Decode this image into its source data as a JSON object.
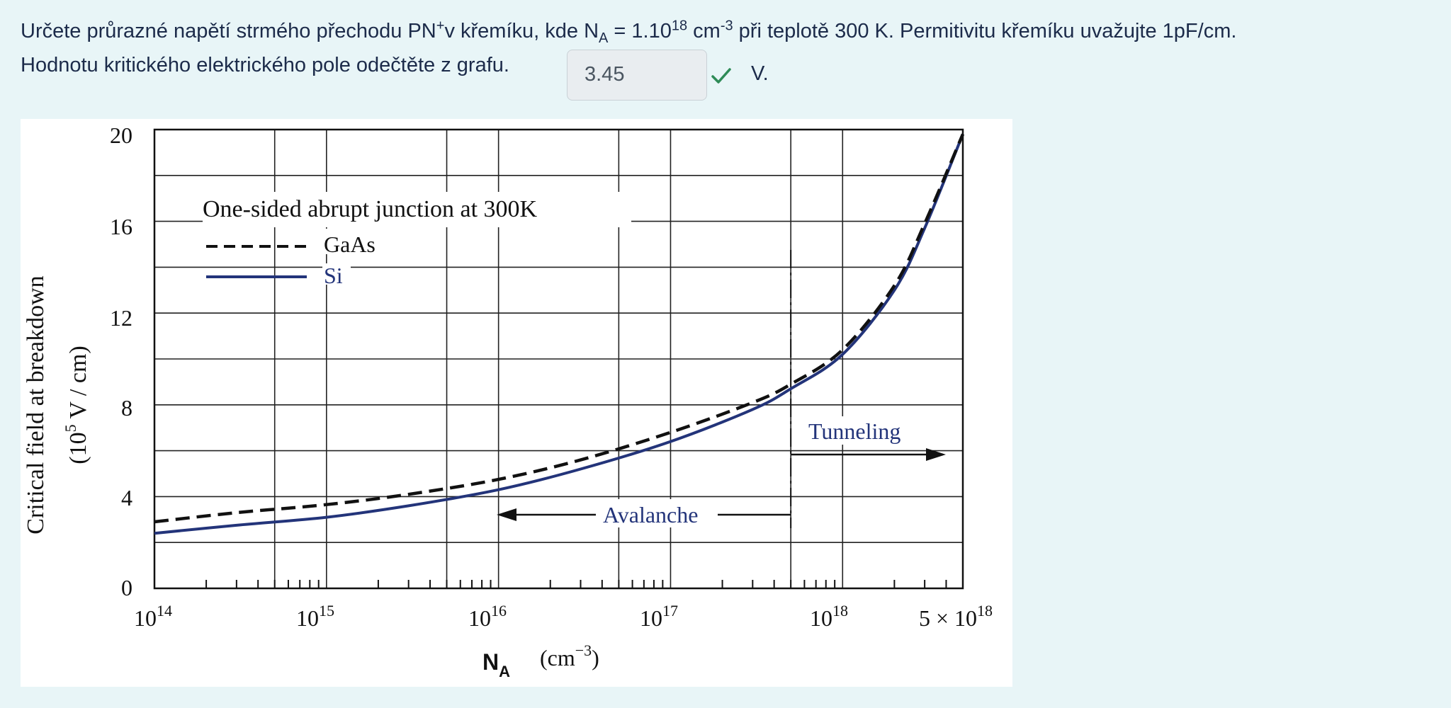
{
  "question": {
    "line1_part1": "Určete průrazné napětí strmého přechodu PN",
    "line1_sup_plus": "+",
    "line1_part2": "v křemíku, kde N",
    "line1_sub_a": "A",
    "line1_part3": " = 1.10",
    "line1_sup_18": "18",
    "line1_part4": " cm",
    "line1_sup_m3": "-3",
    "line1_part5": " při teplotě 300 K. Permitivitu křemíku uvažujte 1pF/cm.",
    "line2": "Hodnotu kritického elektrického pole odečtěte z grafu."
  },
  "answer": {
    "value": "3.45",
    "status": "correct",
    "status_color": "#2e8b57",
    "unit": "V."
  },
  "chart_data": {
    "type": "line",
    "x_scale": "log",
    "xlim": [
      100000000000000.0,
      5e+18
    ],
    "ylim": [
      0,
      20
    ],
    "y_ticks": [
      "0",
      "4",
      "8",
      "12",
      "16",
      "20"
    ],
    "x_tick_labels": {
      "base": "10",
      "exps": [
        "14",
        "15",
        "16",
        "17",
        "18"
      ],
      "last_prefix": "5 × 10",
      "last_exp": "18"
    },
    "ylabel_line1": "Critical field at breakdown",
    "ylabel_line2_a": "(10",
    "ylabel_line2_sup": "5",
    "ylabel_line2_b": " V / cm)",
    "xlabel_main": "N",
    "xlabel_sub": "A",
    "xlabel_unit_a": "(cm",
    "xlabel_unit_sup": "−3",
    "xlabel_unit_b": ")",
    "legend_title": "One-sided abrupt junction at 300K",
    "annotations": {
      "avalanche": "Avalanche",
      "tunneling": "Tunneling",
      "boundary_x": 5e+17
    },
    "series": [
      {
        "name": "GaAs",
        "style": "dashed",
        "color": "#111111",
        "x": [
          100000000000000.0,
          300000000000000.0,
          1000000000000000.0,
          3000000000000000.0,
          1e+16,
          3e+16,
          1e+17,
          3e+17,
          5e+17,
          1e+18,
          2e+18,
          3e+18,
          5e+18
        ],
        "y": [
          2.9,
          3.3,
          3.65,
          4.1,
          4.75,
          5.6,
          6.8,
          8.1,
          8.9,
          10.4,
          13.2,
          15.9,
          19.8
        ]
      },
      {
        "name": "Si",
        "style": "solid",
        "color": "#23347a",
        "x": [
          100000000000000.0,
          300000000000000.0,
          1000000000000000.0,
          3000000000000000.0,
          1e+16,
          3e+16,
          1e+17,
          3e+17,
          5e+17,
          1e+18,
          2e+18,
          3e+18,
          5e+18
        ],
        "y": [
          2.4,
          2.75,
          3.1,
          3.6,
          4.3,
          5.2,
          6.4,
          7.8,
          8.7,
          10.2,
          13.0,
          15.7,
          19.8
        ]
      }
    ]
  }
}
